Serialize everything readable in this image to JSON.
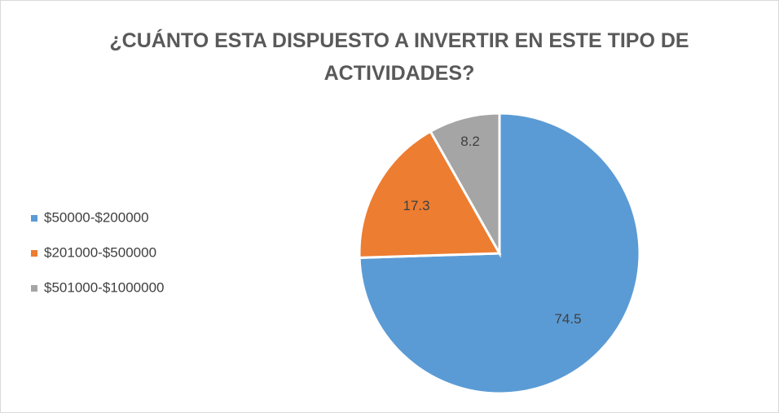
{
  "chart_data": {
    "type": "pie",
    "title": "¿CUÁNTO ESTA DISPUESTO A INVERTIR EN ESTE TIPO DE ACTIVIDADES?",
    "categories": [
      "$50000-$200000",
      "$201000-$500000",
      "$501000-$1000000"
    ],
    "values": [
      74.5,
      17.3,
      8.2
    ],
    "colors": [
      "#5b9bd5",
      "#ed7d31",
      "#a5a5a5"
    ],
    "legend": "left"
  }
}
